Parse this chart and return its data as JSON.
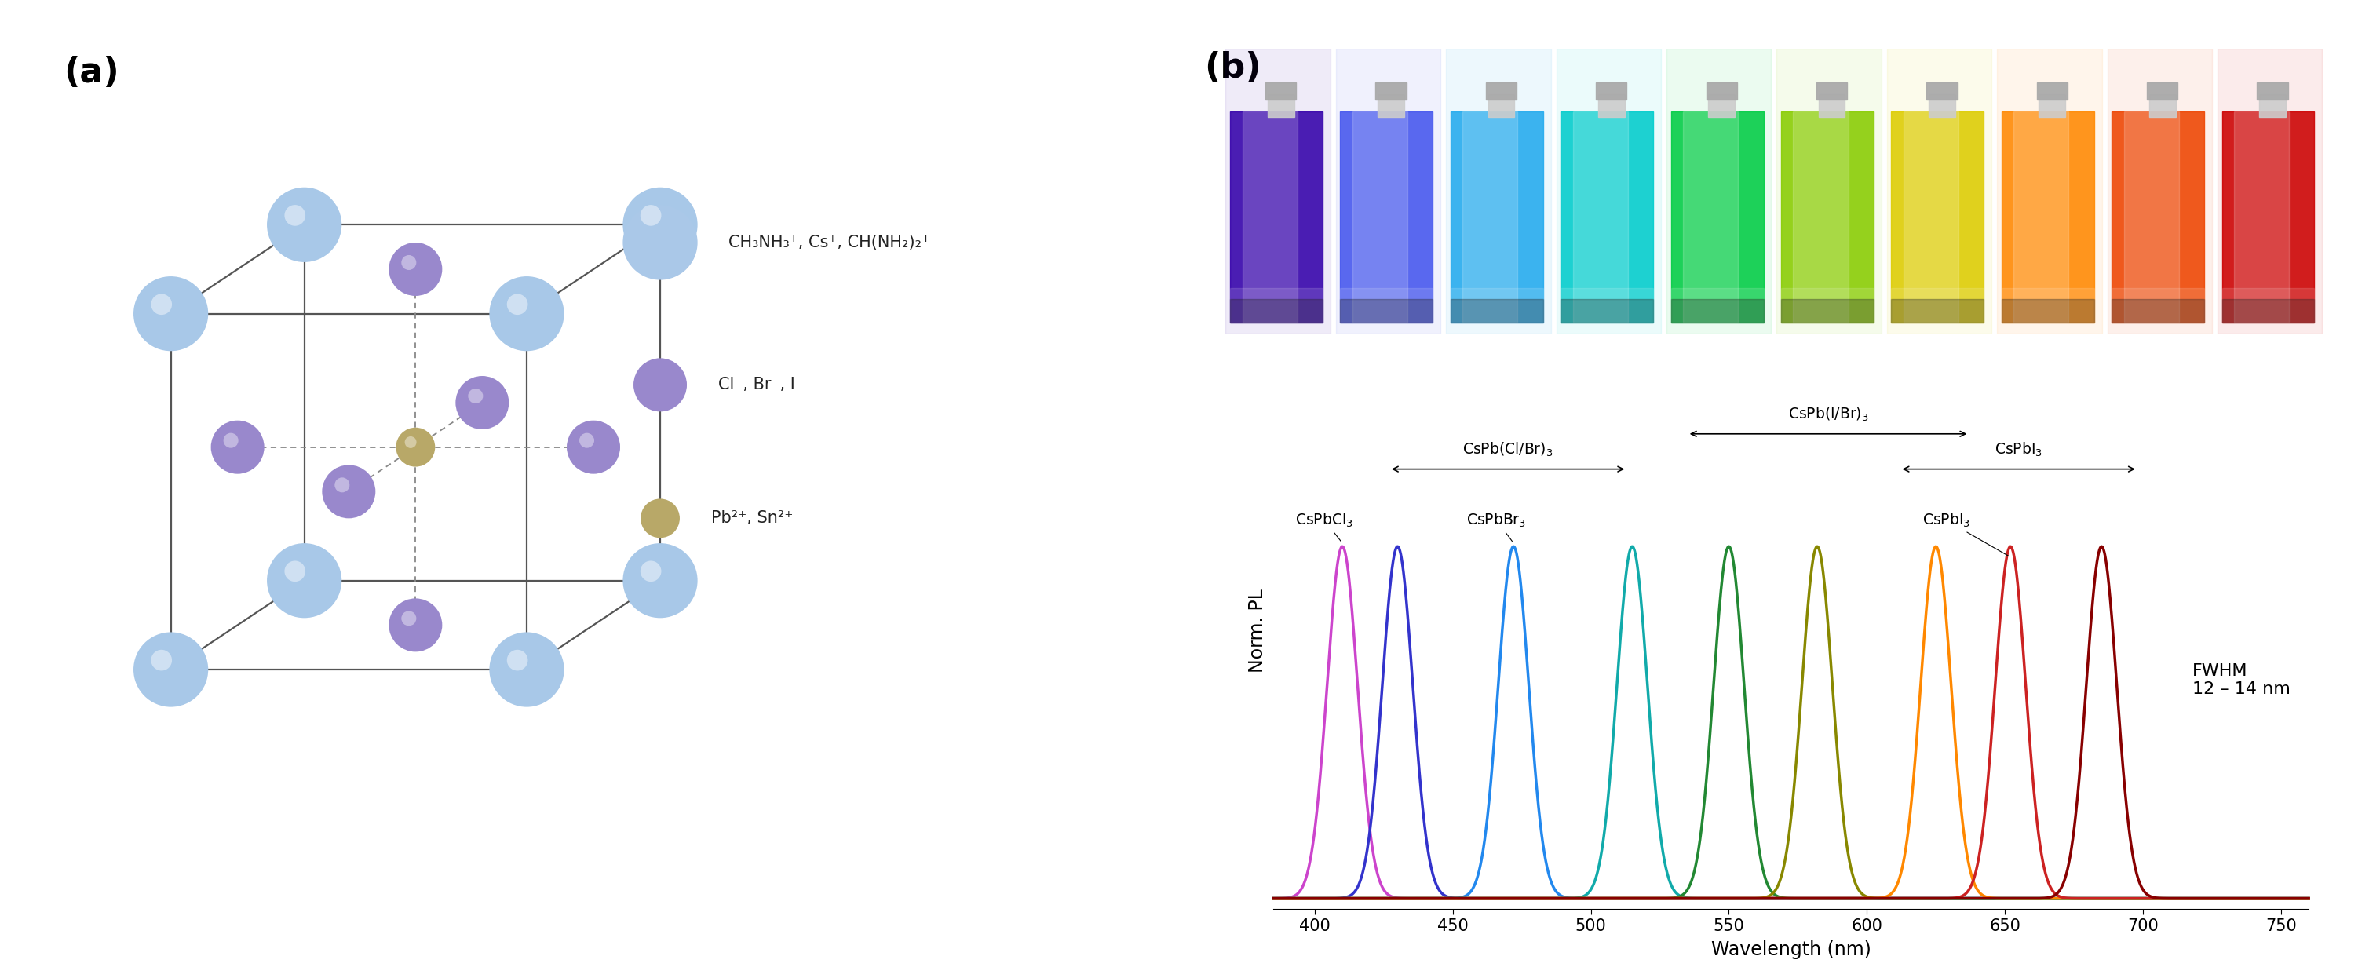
{
  "panel_a_label": "(a)",
  "panel_b_label": "(b)",
  "legend_labels": [
    "CH₃NH₃⁺, Cs⁺, CH(NH₂)₂⁺",
    "Cl⁻, Br⁻, I⁻",
    "Pb²⁺, Sn²⁺"
  ],
  "legend_colors": [
    "#aac8e8",
    "#9988cc",
    "#b8a868"
  ],
  "blue_atom_color": "#a8c8e8",
  "purple_atom_color": "#9988cc",
  "gold_atom_color": "#b8a868",
  "box_color": "#555555",
  "dashed_color": "#888888",
  "peaks": [
    410,
    430,
    472,
    515,
    550,
    582,
    625,
    652,
    685
  ],
  "peak_colors": [
    "#cc44cc",
    "#3333cc",
    "#2288ee",
    "#11aaaa",
    "#228833",
    "#888800",
    "#ff8800",
    "#cc2222",
    "#880000"
  ],
  "fwhm_nm": 13,
  "xlabel": "Wavelength (nm)",
  "ylabel": "Norm. PL",
  "xmin": 385,
  "xmax": 760,
  "fwhm_text": "FWHM\n12 – 14 nm",
  "background_color": "#ffffff",
  "vial_colors": [
    "#3300aa",
    "#4455ee",
    "#22aaee",
    "#00cccc",
    "#00cc44",
    "#88cc00",
    "#ddcc00",
    "#ff8800",
    "#ee4400",
    "#cc0000"
  ],
  "tick_labels": [
    "400",
    "450",
    "500",
    "550",
    "600",
    "650",
    "700",
    "750"
  ]
}
